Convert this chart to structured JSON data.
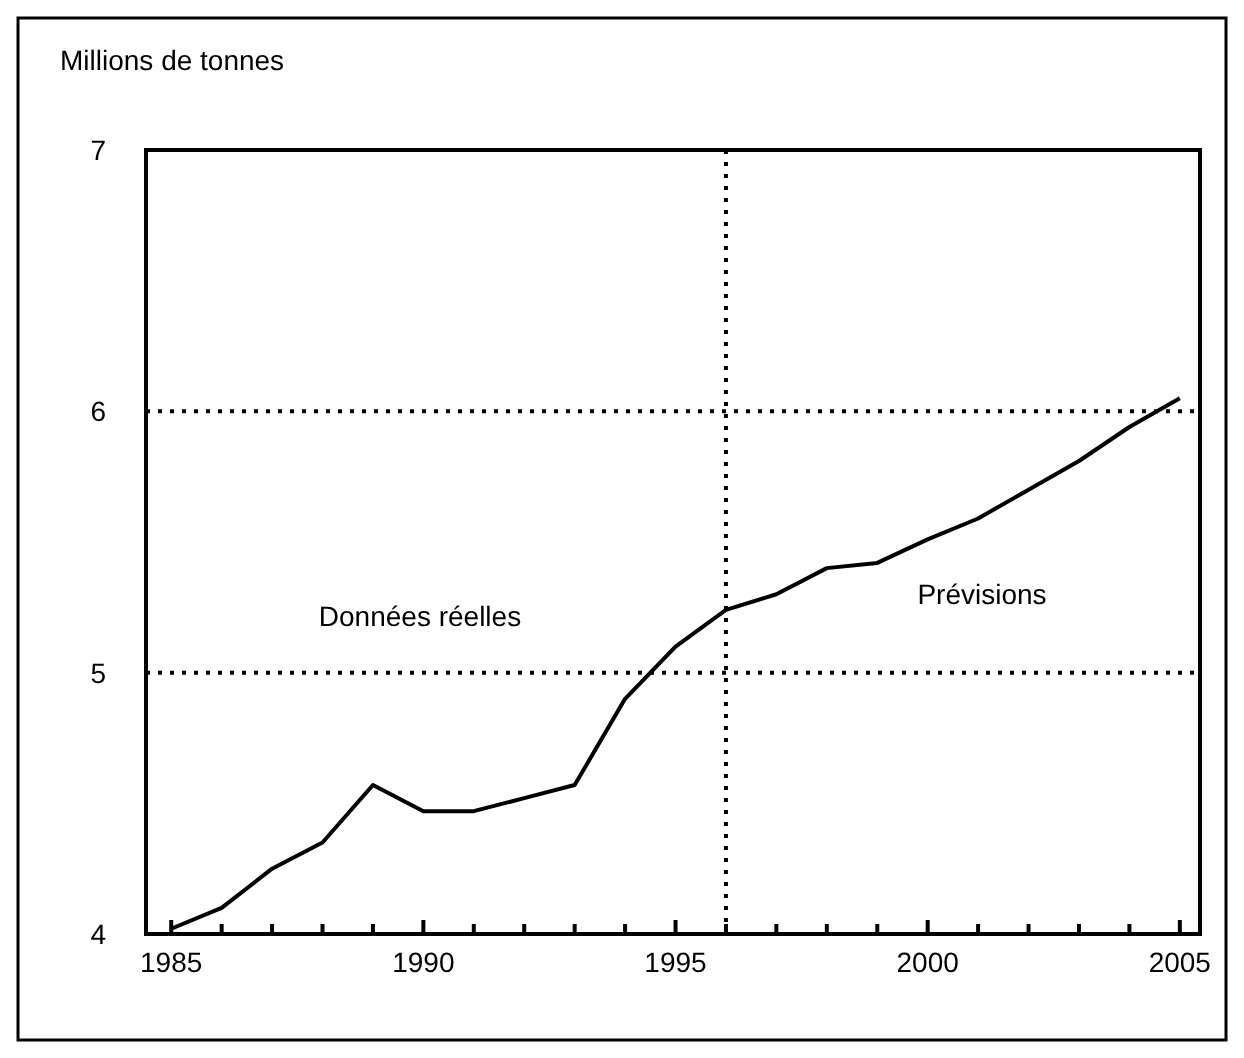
{
  "chart_data": {
    "type": "line",
    "ylabel": "Millions de tonnes",
    "x": [
      1985,
      1986,
      1987,
      1988,
      1989,
      1990,
      1991,
      1992,
      1993,
      1994,
      1995,
      1996,
      1997,
      1998,
      1999,
      2000,
      2001,
      2002,
      2003,
      2004,
      2005
    ],
    "series": [
      {
        "color": "#000000",
        "values": [
          4.02,
          4.1,
          4.25,
          4.35,
          4.57,
          4.47,
          4.47,
          4.52,
          4.57,
          4.9,
          5.1,
          5.24,
          5.3,
          5.4,
          5.42,
          5.51,
          5.59,
          5.7,
          5.81,
          5.94,
          6.05
        ]
      }
    ],
    "xlim": [
      1984.5,
      2005.4
    ],
    "ylim": [
      4,
      7
    ],
    "xticks": [
      1985,
      {
        "value": 1986,
        "label": null
      },
      {
        "value": 1987,
        "label": null
      },
      {
        "value": 1988,
        "label": null
      },
      {
        "value": 1989,
        "label": null
      },
      1990,
      {
        "value": 1991,
        "label": null
      },
      {
        "value": 1992,
        "label": null
      },
      {
        "value": 1993,
        "label": null
      },
      {
        "value": 1994,
        "label": null
      },
      1995,
      {
        "value": 1996,
        "label": null
      },
      {
        "value": 1997,
        "label": null
      },
      {
        "value": 1998,
        "label": null
      },
      {
        "value": 1999,
        "label": null
      },
      2000,
      {
        "value": 2001,
        "label": null
      },
      {
        "value": 2002,
        "label": null
      },
      {
        "value": 2003,
        "label": null
      },
      {
        "value": 2004,
        "label": null
      },
      2005
    ],
    "yticks": [
      4,
      5,
      6,
      7
    ],
    "grid": "y",
    "marker": "none",
    "line_style": "solid",
    "ref_lines": [
      {
        "axis": "x",
        "value": 1996,
        "line_style": "dotted"
      }
    ],
    "annotations": [
      "Données réelles",
      "Prévisions"
    ]
  }
}
